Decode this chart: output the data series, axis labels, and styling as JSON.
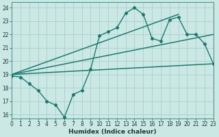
{
  "title": "",
  "xlabel": "Humidex (Indice chaleur)",
  "ylabel": "",
  "bg_color": "#cce8e5",
  "grid_color": "#aad4d0",
  "line_color": "#1a7a6e",
  "xlim": [
    0,
    23
  ],
  "ylim": [
    15.7,
    24.4
  ],
  "xticks": [
    0,
    1,
    2,
    3,
    4,
    5,
    6,
    7,
    8,
    9,
    10,
    11,
    12,
    13,
    14,
    15,
    16,
    17,
    18,
    19,
    20,
    21,
    22,
    23
  ],
  "yticks": [
    16,
    17,
    18,
    19,
    20,
    21,
    22,
    23,
    24
  ],
  "jagged_x": [
    0,
    1,
    2,
    3,
    4,
    5,
    6,
    7,
    8,
    9,
    10,
    11,
    12,
    13,
    14,
    15,
    16,
    17,
    18,
    19,
    20,
    21,
    22,
    23
  ],
  "jagged_y": [
    18.9,
    18.8,
    18.3,
    17.8,
    17.0,
    16.7,
    15.8,
    17.5,
    17.8,
    19.4,
    21.9,
    22.2,
    22.5,
    23.6,
    24.0,
    23.5,
    21.7,
    21.5,
    23.1,
    23.3,
    22.0,
    22.0,
    21.3,
    19.8
  ],
  "upper_line": {
    "x": [
      0,
      19
    ],
    "y": [
      19.0,
      23.5
    ]
  },
  "mid_line": {
    "x": [
      0,
      23
    ],
    "y": [
      19.0,
      22.0
    ]
  },
  "lower_line": {
    "x": [
      0,
      23
    ],
    "y": [
      19.0,
      19.8
    ]
  },
  "xlabel_fontsize": 6.5,
  "tick_fontsize": 5.5
}
